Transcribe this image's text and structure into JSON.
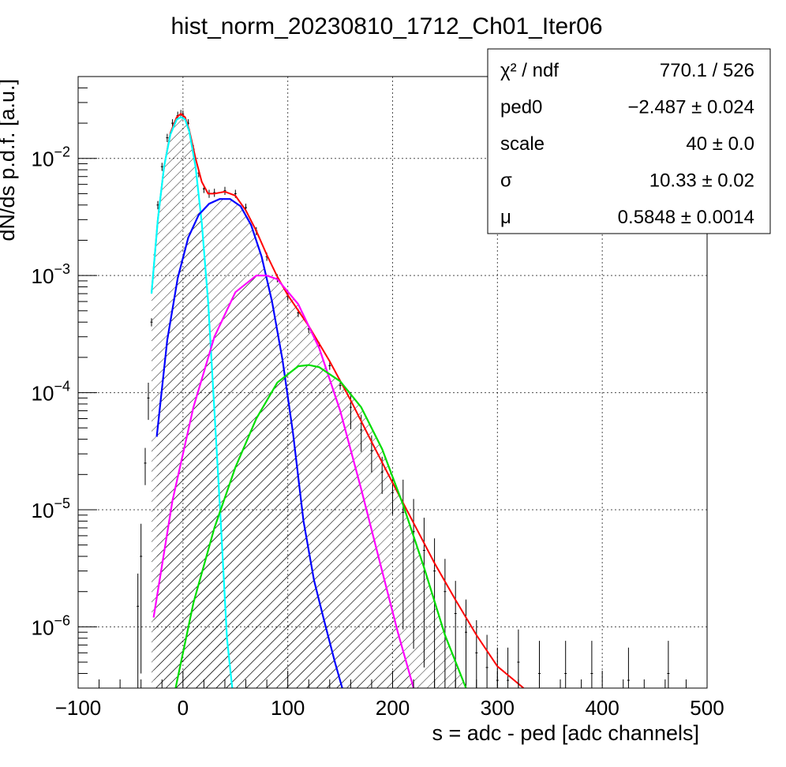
{
  "chart_data": {
    "type": "line",
    "title": "hist_norm_20230810_1712_Ch01_Iter06",
    "xlabel": "s = adc - ped [adc channels]",
    "ylabel": "dN/ds p.d.f. [a.u.]",
    "xlim": [
      -100,
      500
    ],
    "ylim": [
      3e-07,
      0.05
    ],
    "yscale": "log",
    "grid": true,
    "x_ticks": [
      -100,
      0,
      100,
      200,
      300,
      400,
      500
    ],
    "x_tick_labels": [
      "−100",
      "0",
      "100",
      "200",
      "300",
      "400",
      "500"
    ],
    "y_ticks": [
      {
        "value": 1e-06,
        "base": "10",
        "exp": "−6"
      },
      {
        "value": 1e-05,
        "base": "10",
        "exp": "−5"
      },
      {
        "value": 0.0001,
        "base": "10",
        "exp": "−4"
      },
      {
        "value": 0.001,
        "base": "10",
        "exp": "−3"
      },
      {
        "value": 0.01,
        "base": "10",
        "exp": "−2"
      }
    ],
    "series": [
      {
        "role": "data",
        "color": "#000000",
        "x": [
          -43,
          -40,
          -36,
          -33,
          -30,
          -27,
          -24,
          -20,
          -15,
          -10,
          -5,
          -2,
          0,
          5,
          10,
          15,
          20,
          25,
          30,
          40,
          50,
          60,
          70,
          80,
          90,
          100,
          110,
          120,
          130,
          140,
          150,
          160,
          170,
          180,
          190,
          200,
          210,
          220,
          230,
          240,
          250,
          260,
          270,
          280,
          290,
          300,
          310,
          320,
          340,
          365,
          390,
          425,
          463
        ],
        "y": [
          1.5e-06,
          4e-06,
          2.5e-05,
          9e-05,
          0.0004,
          0.0015,
          0.004,
          0.0085,
          0.015,
          0.02,
          0.0232,
          0.024,
          0.0238,
          0.02,
          0.012,
          0.0075,
          0.0055,
          0.005,
          0.0051,
          0.0053,
          0.005,
          0.0038,
          0.0024,
          0.00145,
          0.00095,
          0.00066,
          0.00048,
          0.00035,
          0.00025,
          0.00017,
          0.000115,
          7.5e-05,
          4.8e-05,
          3.2e-05,
          2.1e-05,
          1.4e-05,
          9.5e-06,
          6.5e-06,
          4.5e-06,
          3e-06,
          2e-06,
          1.3e-06,
          9e-07,
          6e-07,
          4.5e-07,
          3.5e-07,
          3.5e-07,
          5e-07,
          4e-07,
          4e-07,
          4e-07,
          3.5e-07,
          4e-07
        ]
      },
      {
        "role": "fit",
        "color": "#ff0000",
        "x": [
          -30,
          -24,
          -18,
          -12,
          -6,
          -2,
          2,
          6,
          12,
          18,
          24,
          30,
          40,
          50,
          60,
          70,
          80,
          90,
          100,
          120,
          140,
          160,
          180,
          200,
          220,
          240,
          260,
          280,
          300,
          325
        ],
        "y": [
          0.0007,
          0.003,
          0.0085,
          0.0165,
          0.0225,
          0.024,
          0.0225,
          0.0175,
          0.01,
          0.0063,
          0.005,
          0.005,
          0.0052,
          0.0048,
          0.0036,
          0.0024,
          0.0015,
          0.00098,
          0.00068,
          0.00037,
          0.000185,
          8.6e-05,
          3.8e-05,
          1.7e-05,
          7.7e-06,
          3.5e-06,
          1.7e-06,
          8.5e-07,
          4.6e-07,
          3e-07
        ]
      },
      {
        "role": "component",
        "color": "#00ffff",
        "x": [
          -30,
          -24,
          -18,
          -12,
          -6,
          -2,
          2,
          6,
          12,
          18,
          24,
          30,
          36,
          42,
          47
        ],
        "y": [
          0.0007,
          0.003,
          0.0085,
          0.016,
          0.0215,
          0.0225,
          0.0215,
          0.017,
          0.0085,
          0.0028,
          0.0006,
          7e-05,
          8e-06,
          8e-07,
          3e-07
        ]
      },
      {
        "role": "component",
        "color": "#0000ff",
        "x": [
          -25,
          -15,
          -5,
          5,
          15,
          25,
          35,
          45,
          55,
          65,
          75,
          85,
          95,
          105,
          115,
          125,
          135,
          145,
          152
        ],
        "y": [
          4.2e-05,
          0.00028,
          0.00095,
          0.0021,
          0.0033,
          0.0041,
          0.0045,
          0.0045,
          0.0039,
          0.0027,
          0.00145,
          0.0006,
          0.00019,
          4.5e-05,
          8e-06,
          2.5e-06,
          1.1e-06,
          5e-07,
          3e-07
        ]
      },
      {
        "role": "component",
        "color": "#ff00ff",
        "x": [
          -28,
          -10,
          10,
          30,
          50,
          70,
          80,
          90,
          110,
          130,
          150,
          170,
          190,
          205,
          220
        ],
        "y": [
          1.2e-06,
          1.2e-05,
          7.5e-05,
          0.0003,
          0.00072,
          0.001,
          0.001,
          0.00093,
          0.00057,
          0.00024,
          7e-05,
          1.5e-05,
          3e-06,
          9e-07,
          3e-07
        ]
      },
      {
        "role": "component",
        "color": "#00dd00",
        "x": [
          -7,
          10,
          30,
          50,
          70,
          90,
          110,
          120,
          130,
          150,
          170,
          190,
          210,
          230,
          250,
          270
        ],
        "y": [
          3e-07,
          1.6e-06,
          7e-06,
          2.3e-05,
          6e-05,
          0.000122,
          0.000168,
          0.000172,
          0.000165,
          0.000125,
          7.5e-05,
          3.3e-05,
          1.1e-05,
          3.2e-06,
          8.5e-07,
          3e-07
        ]
      }
    ],
    "stats_box": [
      {
        "label": "χ² / ndf",
        "value": "770.1 / 526"
      },
      {
        "label": "ped0",
        "value": "−2.487 ± 0.024"
      },
      {
        "label": "scale",
        "value": "40 ± 0.0"
      },
      {
        "label": "σ",
        "value": "10.33 ± 0.02"
      },
      {
        "label": "μ",
        "value": "0.5848 ± 0.0014"
      }
    ]
  }
}
